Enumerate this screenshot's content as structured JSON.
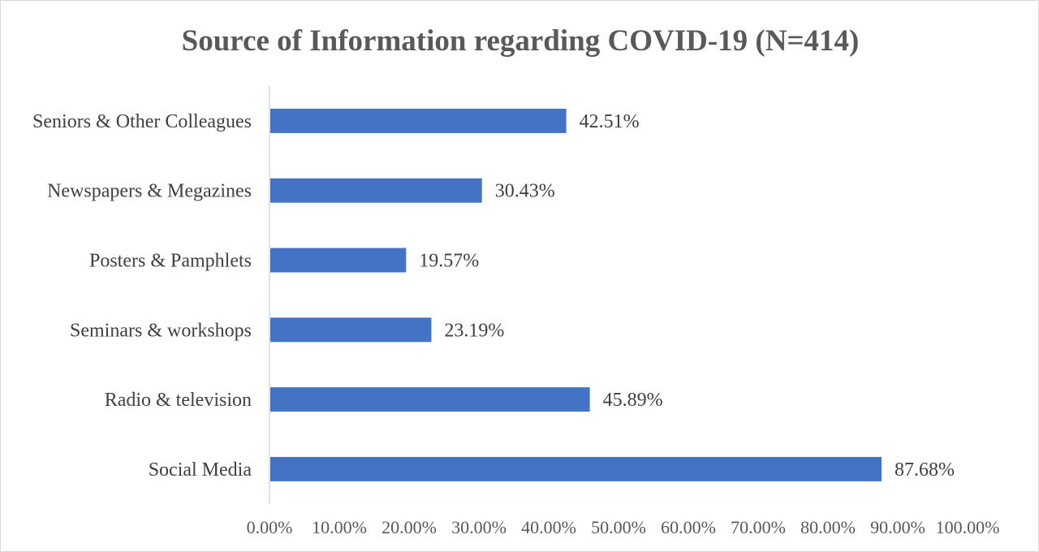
{
  "chart_data": {
    "type": "bar",
    "orientation": "horizontal",
    "title": "Source of Information regarding COVID-19 (N=414)",
    "xlabel": "",
    "ylabel": "",
    "categories": [
      "Social Media",
      "Radio & television",
      "Seminars & workshops",
      "Posters & Pamphlets",
      "Newspapers & Megazines",
      "Seniors & Other Colleagues"
    ],
    "values": [
      87.68,
      45.89,
      23.19,
      19.57,
      30.43,
      42.51
    ],
    "data_labels": [
      "87.68%",
      "45.89%",
      "23.19%",
      "19.57%",
      "30.43%",
      "42.51%"
    ],
    "xlim": [
      0,
      100
    ],
    "x_ticks": [
      "0.00%",
      "10.00%",
      "20.00%",
      "30.00%",
      "40.00%",
      "50.00%",
      "60.00%",
      "70.00%",
      "80.00%",
      "90.00%",
      "100.00%"
    ],
    "grid": false,
    "legend": "none",
    "bar_color": "#4472c4"
  }
}
